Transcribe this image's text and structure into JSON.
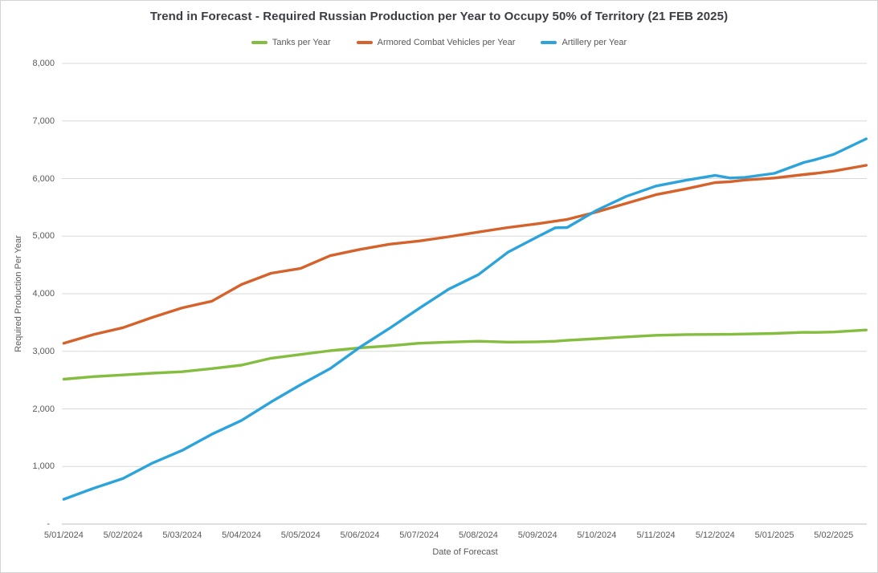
{
  "window": {
    "background_color": "#FFFFFF",
    "border_color": "#D4D4D4"
  },
  "text_colors": {
    "title": "#3C3C44",
    "axis_text": "#595959"
  },
  "grid_colors": {
    "gridline": "#D9D9D9",
    "axis_line": "#BFBFBF"
  },
  "chart_data": {
    "type": "line",
    "title": "Trend in Forecast - Required Russian Production per Year to Occupy 50% of Territory (21 FEB 2025)",
    "xlabel": "Date of Forecast",
    "ylabel": "Required Production Per Year",
    "legend_position": "top",
    "grid": true,
    "y_min": 0,
    "y_max": 8000,
    "y_step": 1000,
    "y_tick_labels": [
      "-",
      "1,000",
      "2,000",
      "3,000",
      "4,000",
      "5,000",
      "6,000",
      "7,000",
      "8,000"
    ],
    "x_tick_labels": [
      "5/01/2024",
      "5/02/2024",
      "5/03/2024",
      "5/04/2024",
      "5/05/2024",
      "5/06/2024",
      "5/07/2024",
      "5/08/2024",
      "5/09/2024",
      "5/10/2024",
      "5/11/2024",
      "5/12/2024",
      "5/01/2025",
      "5/02/2025"
    ],
    "x_unit": "month-index (0 = 5/01/2024, data extends to ~21 FEB 2025)",
    "x": [
      0,
      0.5,
      1,
      1.5,
      2,
      2.5,
      3,
      3.5,
      4,
      4.5,
      5,
      5.5,
      6,
      6.5,
      7,
      7.5,
      8,
      8.3,
      8.5,
      9,
      9.5,
      10,
      10.5,
      11,
      11.25,
      11.5,
      12,
      12.5,
      12.7,
      13,
      13.55
    ],
    "series": [
      {
        "name": "Tanks per Year",
        "color": "#84BD3F",
        "values": [
          2515,
          2560,
          2590,
          2620,
          2645,
          2700,
          2760,
          2880,
          2945,
          3010,
          3060,
          3095,
          3140,
          3160,
          3175,
          3160,
          3165,
          3175,
          3190,
          3220,
          3250,
          3278,
          3290,
          3293,
          3295,
          3300,
          3310,
          3330,
          3328,
          3335,
          3370
        ]
      },
      {
        "name": "Armored Combat Vehicles per Year",
        "color": "#D6622B",
        "values": [
          3140,
          3290,
          3410,
          3590,
          3755,
          3870,
          4160,
          4355,
          4440,
          4660,
          4770,
          4860,
          4915,
          4990,
          5070,
          5150,
          5215,
          5260,
          5290,
          5420,
          5570,
          5720,
          5820,
          5930,
          5945,
          5975,
          6010,
          6070,
          6090,
          6130,
          6230
        ]
      },
      {
        "name": "Artillery per Year",
        "color": "#2DA3DC",
        "values": [
          430,
          620,
          790,
          1060,
          1280,
          1560,
          1800,
          2120,
          2420,
          2700,
          3070,
          3400,
          3745,
          4080,
          4330,
          4720,
          4990,
          5145,
          5150,
          5450,
          5690,
          5870,
          5970,
          6055,
          6010,
          6020,
          6090,
          6280,
          6330,
          6420,
          6690
        ]
      }
    ]
  }
}
